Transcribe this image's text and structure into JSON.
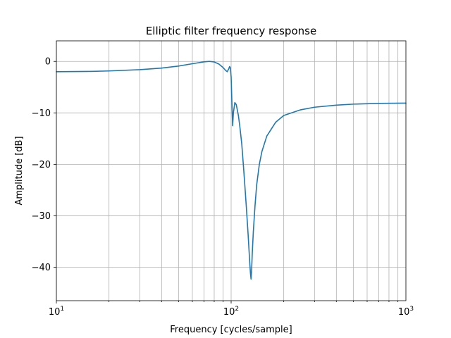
{
  "chart_data": {
    "type": "line",
    "title": "Elliptic filter frequency response",
    "xlabel": "Frequency [cycles/sample]",
    "ylabel": "Amplitude [dB]",
    "x_scale": "log",
    "xlim": [
      10,
      1000
    ],
    "ylim": [
      -46.5,
      4
    ],
    "x_ticks": [
      {
        "value": 10,
        "base": "10",
        "exp": "1"
      },
      {
        "value": 100,
        "base": "10",
        "exp": "2"
      },
      {
        "value": 1000,
        "base": "10",
        "exp": "3"
      }
    ],
    "y_ticks": [
      {
        "value": 0,
        "label": "0"
      },
      {
        "value": -10,
        "label": "−10"
      },
      {
        "value": -20,
        "label": "−20"
      },
      {
        "value": -30,
        "label": "−30"
      },
      {
        "value": -40,
        "label": "−40"
      }
    ],
    "grid": "both, major and minor",
    "series": [
      {
        "color": "#1f77b4",
        "x": [
          10,
          15,
          20,
          30,
          40,
          50,
          60,
          70,
          75,
          80,
          85,
          90,
          93,
          95,
          97,
          98,
          99,
          100,
          101,
          102,
          103,
          105,
          107,
          110,
          112,
          115,
          118,
          120,
          122,
          125,
          127,
          128,
          129,
          130,
          131,
          132,
          134,
          137,
          140,
          145,
          150,
          160,
          180,
          200,
          250,
          300,
          400,
          500,
          700,
          1000
        ],
        "y": [
          -2.0,
          -1.95,
          -1.85,
          -1.6,
          -1.3,
          -0.9,
          -0.45,
          -0.08,
          0.0,
          -0.1,
          -0.5,
          -1.2,
          -1.75,
          -2.0,
          -1.4,
          -1.0,
          -1.25,
          -3.0,
          -8.0,
          -12.5,
          -10.0,
          -8.0,
          -8.4,
          -10.5,
          -12.5,
          -16.0,
          -21.0,
          -24.5,
          -28.0,
          -33.5,
          -37.5,
          -39.5,
          -41.2,
          -42.3,
          -40.5,
          -37.5,
          -33.0,
          -28.0,
          -24.0,
          -20.0,
          -17.5,
          -14.5,
          -11.8,
          -10.5,
          -9.4,
          -8.9,
          -8.5,
          -8.3,
          -8.15,
          -8.1
        ]
      }
    ]
  }
}
